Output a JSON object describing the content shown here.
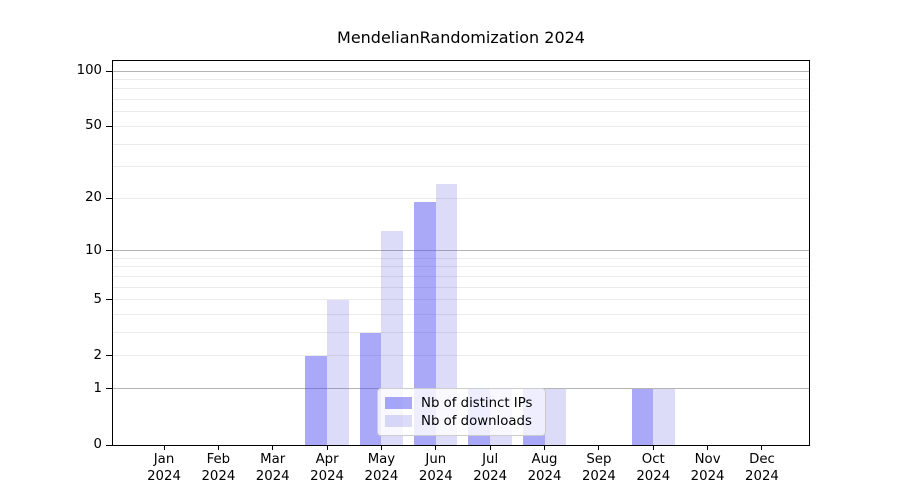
{
  "chart_data": {
    "type": "bar",
    "title": "MendelianRandomization 2024",
    "categories": [
      {
        "month": "Jan",
        "year": "2024"
      },
      {
        "month": "Feb",
        "year": "2024"
      },
      {
        "month": "Mar",
        "year": "2024"
      },
      {
        "month": "Apr",
        "year": "2024"
      },
      {
        "month": "May",
        "year": "2024"
      },
      {
        "month": "Jun",
        "year": "2024"
      },
      {
        "month": "Jul",
        "year": "2024"
      },
      {
        "month": "Aug",
        "year": "2024"
      },
      {
        "month": "Sep",
        "year": "2024"
      },
      {
        "month": "Oct",
        "year": "2024"
      },
      {
        "month": "Nov",
        "year": "2024"
      },
      {
        "month": "Dec",
        "year": "2024"
      }
    ],
    "series": [
      {
        "key": "distinct-ips",
        "name": "Nb of distinct IPs",
        "color": "rgba(80,80,240,0.49)",
        "values": [
          0,
          0,
          0,
          2,
          3,
          19,
          1,
          1,
          0,
          1,
          0,
          0
        ]
      },
      {
        "key": "downloads",
        "name": "Nb of downloads",
        "color": "rgba(80,80,220,0.20)",
        "values": [
          0,
          0,
          0,
          5,
          13,
          24,
          1,
          1,
          0,
          1,
          0,
          0
        ]
      }
    ],
    "xlabel": "",
    "ylabel": "",
    "yscale": "log1p",
    "ylim": [
      0,
      113
    ],
    "y_ticks": [
      0,
      1,
      2,
      5,
      10,
      20,
      50,
      100
    ],
    "y_major_gridlines": [
      1,
      10,
      100
    ],
    "y_minor_gridlines": [
      2,
      3,
      4,
      5,
      6,
      7,
      8,
      9,
      20,
      30,
      40,
      50,
      60,
      70,
      80,
      90
    ],
    "grid": true,
    "legend_position": "lower center",
    "colors": {
      "major_grid": "#b4b4b4",
      "minor_grid": "#eaeaea",
      "spine": "#000000",
      "text": "#000000"
    }
  }
}
